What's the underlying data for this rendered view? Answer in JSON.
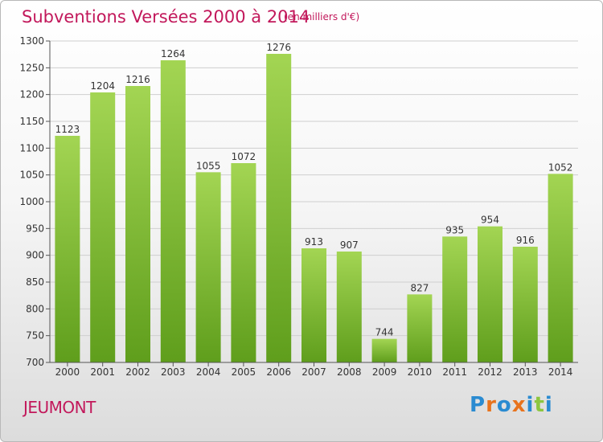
{
  "title": "Subventions Versées 2000 à 2014",
  "unit_note": "(en milliers d'€)",
  "commune": "JEUMONT",
  "logo": {
    "letters": [
      "P",
      "r",
      "o",
      "x",
      "i",
      "t",
      "i"
    ],
    "colors": [
      "#2a8bd1",
      "#e8731d",
      "#2a8bd1",
      "#e8731d",
      "#2a8bd1",
      "#8cc63e",
      "#2a8bd1"
    ]
  },
  "colors": {
    "bar_top": "#a3d553",
    "bar_bottom": "#5f9e1c",
    "accent": "#c2185b"
  },
  "chart_data": {
    "type": "bar",
    "categories": [
      "2000",
      "2001",
      "2002",
      "2003",
      "2004",
      "2005",
      "2006",
      "2007",
      "2008",
      "2009",
      "2010",
      "2011",
      "2012",
      "2013",
      "2014"
    ],
    "values": [
      1123,
      1204,
      1216,
      1264,
      1055,
      1072,
      1276,
      913,
      907,
      744,
      827,
      935,
      954,
      916,
      1052
    ],
    "ylim": [
      700,
      1300
    ],
    "yticks": [
      700,
      750,
      800,
      850,
      900,
      950,
      1000,
      1050,
      1100,
      1150,
      1200,
      1250,
      1300
    ],
    "grid": true,
    "legend": "none"
  }
}
